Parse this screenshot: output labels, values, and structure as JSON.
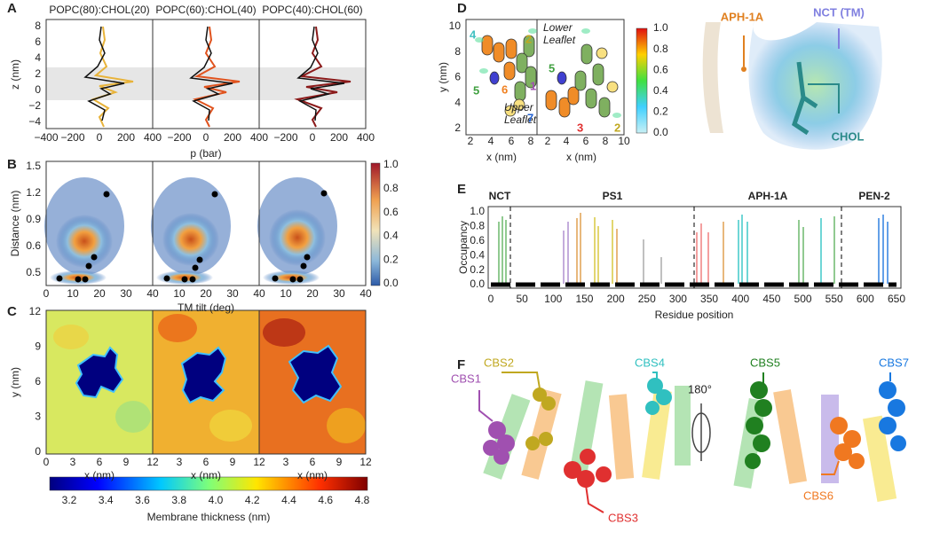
{
  "panel_labels": [
    "A",
    "B",
    "C",
    "D",
    "E",
    "F"
  ],
  "a": {
    "titles": [
      "POPC(80):CHOL(20)",
      "POPC(60):CHOL(40)",
      "POPC(40):CHOL(60)"
    ],
    "y_ticks": [
      "8",
      "6",
      "4",
      "2",
      "0",
      "−2",
      "−4"
    ],
    "x_ticks": [
      "−400",
      "−200",
      "0",
      "200",
      "400",
      "−200",
      "0",
      "200",
      "400",
      "−200",
      "0",
      "200",
      "400"
    ],
    "y_label": "z (nm)",
    "x_label": "p (bar)"
  },
  "b": {
    "y_ticks": [
      "1.5",
      "1.2",
      "0.9",
      "0.6",
      "0.5"
    ],
    "x_ticks": [
      "0",
      "10",
      "20",
      "30",
      "40",
      "10",
      "20",
      "30",
      "40",
      "10",
      "20",
      "30",
      "40"
    ],
    "y_label": "Distance (nm)",
    "x_label": "TM tilt (deg)",
    "colorbar_ticks": [
      "1.0",
      "0.8",
      "0.6",
      "0.4",
      "0.2",
      "0.0"
    ]
  },
  "c": {
    "y_ticks": [
      "12",
      "9",
      "6",
      "3",
      "0"
    ],
    "x_ticks": [
      "0",
      "3",
      "6",
      "9",
      "12",
      "3",
      "6",
      "9",
      "12",
      "3",
      "6",
      "9",
      "12"
    ],
    "y_label": "y (nm)",
    "x_label": "x (nm)",
    "colorbar_ticks": [
      "3.2",
      "3.4",
      "3.6",
      "3.8",
      "4.0",
      "4.2",
      "4.4",
      "4.6",
      "4.8"
    ],
    "colorbar_label": "Membrane thickness (nm)"
  },
  "d": {
    "y_ticks": [
      "10",
      "8",
      "6",
      "4",
      "2"
    ],
    "x_ticks": [
      "2",
      "4",
      "6",
      "8",
      "2",
      "4",
      "6",
      "8",
      "10"
    ],
    "y_label": "y (nm)",
    "x_label": "x (nm)",
    "upper": "Upper\nLeaflet",
    "lower": "Lower\nLeaflet",
    "site_numbers": [
      "4",
      "2",
      "5",
      "6",
      "1",
      "7",
      "5",
      "3",
      "2"
    ],
    "colorbar_ticks": [
      "1.0",
      "0.8",
      "0.6",
      "0.4",
      "0.2",
      "0.0"
    ],
    "molecule_labels": [
      "APH-1A",
      "NCT (TM)",
      "CHOL"
    ]
  },
  "e": {
    "groups": [
      "NCT",
      "PS1",
      "APH-1A",
      "PEN-2"
    ],
    "y_ticks": [
      "1.0",
      "0.8",
      "0.6",
      "0.4",
      "0.2",
      "0.0"
    ],
    "x_ticks": [
      "0",
      "50",
      "100",
      "150",
      "200",
      "250",
      "300",
      "350",
      "400",
      "450",
      "500",
      "550",
      "600",
      "650"
    ],
    "y_label": "Occupancy",
    "x_label": "Residue position"
  },
  "f": {
    "sites": [
      "CBS1",
      "CBS2",
      "CBS3",
      "CBS4",
      "CBS5",
      "CBS6",
      "CBS7"
    ],
    "rotation": "180°"
  }
}
